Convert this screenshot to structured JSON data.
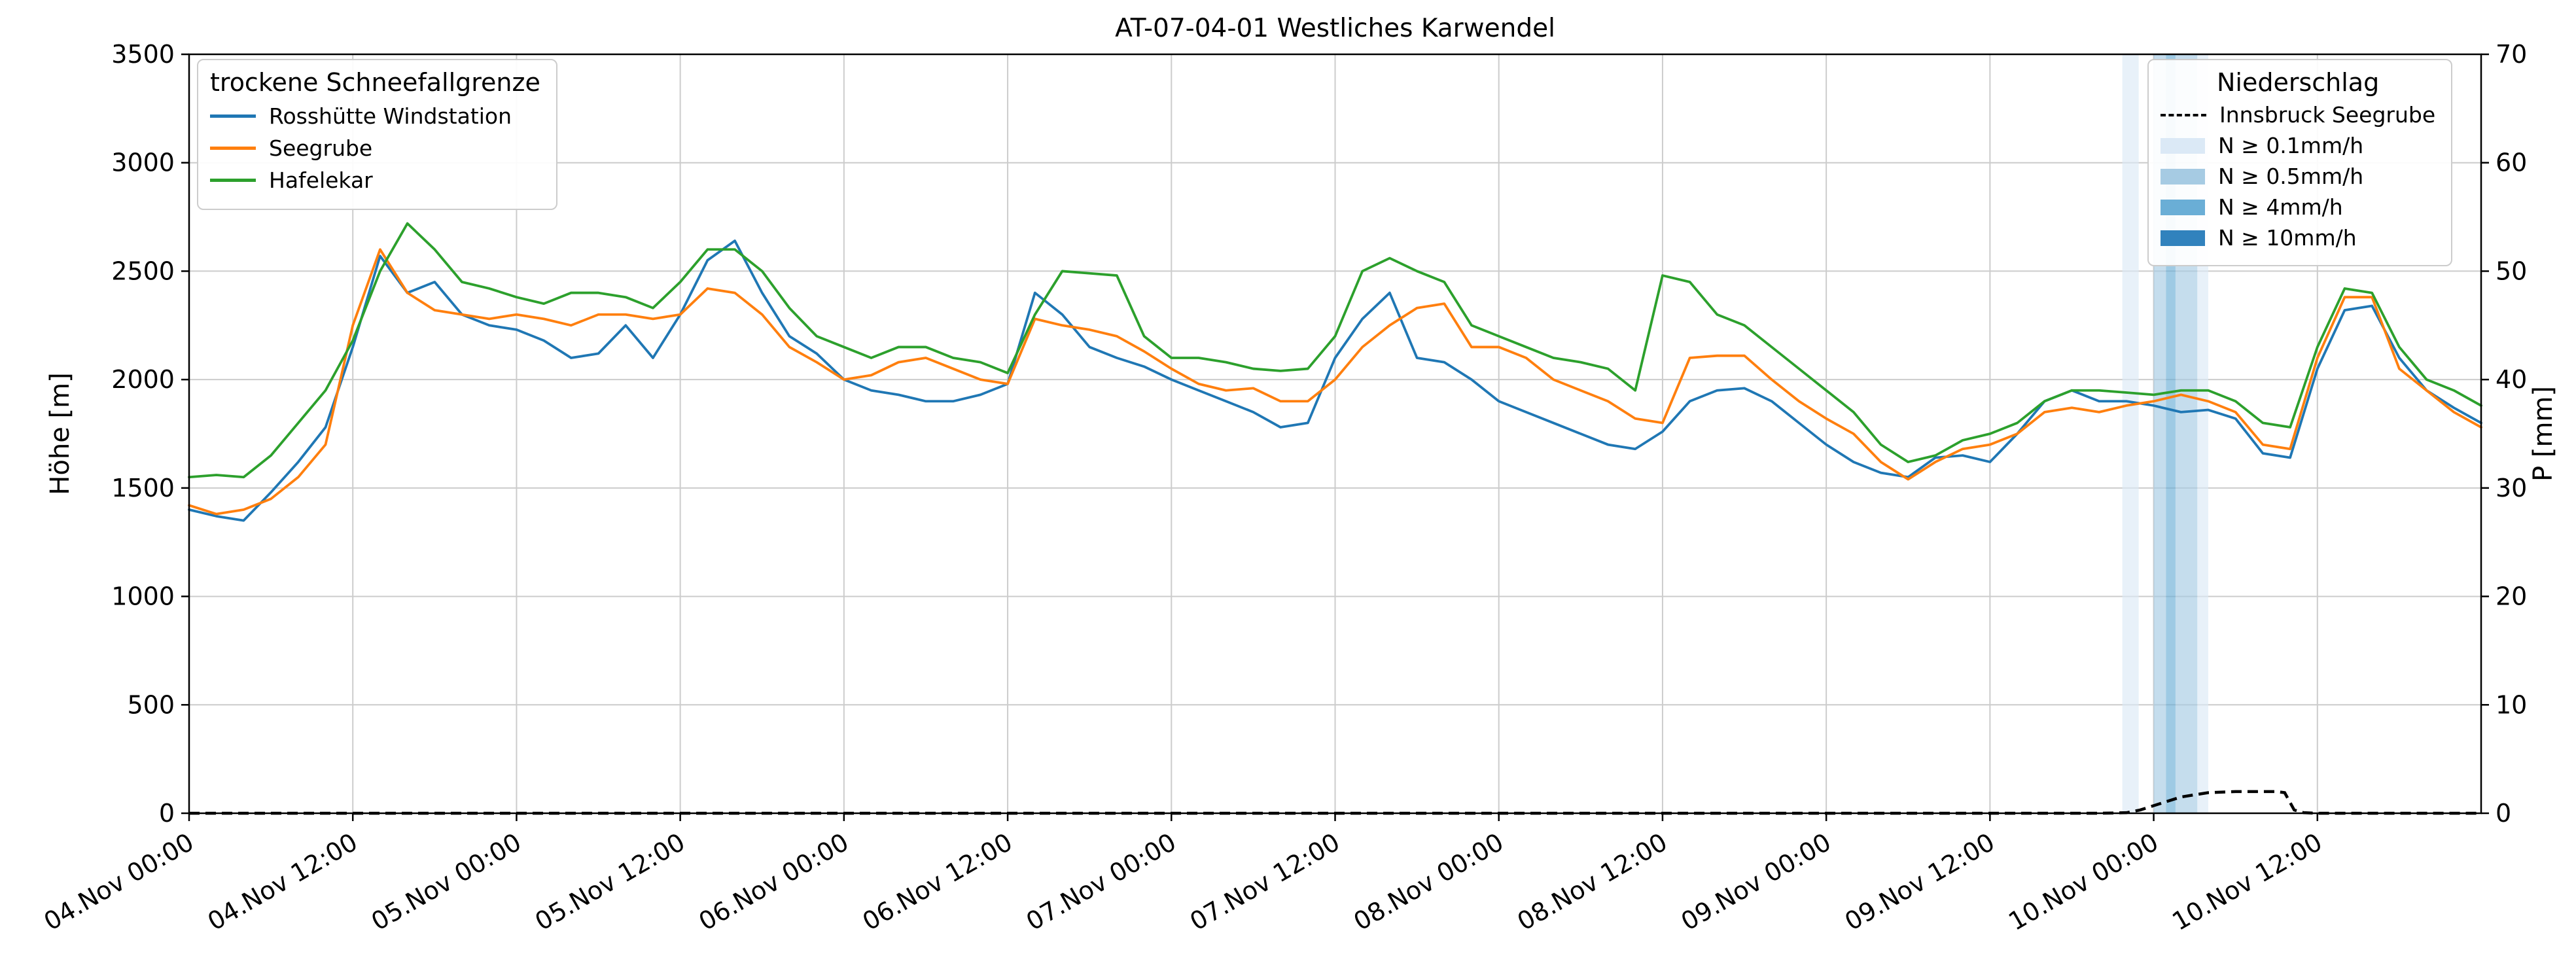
{
  "chart_data": {
    "type": "line",
    "title": "AT-07-04-01 Westliches Karwendel",
    "ylabel_left": "Höhe [m]",
    "ylabel_right": "P [mm]",
    "ylim_left": [
      0,
      3500
    ],
    "ylim_right": [
      0,
      70
    ],
    "y_ticks_left": [
      0,
      500,
      1000,
      1500,
      2000,
      2500,
      3000,
      3500
    ],
    "y_ticks_right": [
      0,
      10,
      20,
      30,
      40,
      50,
      60,
      70
    ],
    "x_hours_range": [
      0,
      168
    ],
    "x_tick_interval_hours": 12,
    "x_ticks": [
      "04.Nov 00:00",
      "04.Nov 12:00",
      "05.Nov 00:00",
      "05.Nov 12:00",
      "06.Nov 00:00",
      "06.Nov 12:00",
      "07.Nov 00:00",
      "07.Nov 12:00",
      "08.Nov 00:00",
      "08.Nov 12:00",
      "09.Nov 00:00",
      "09.Nov 12:00",
      "10.Nov 00:00",
      "10.Nov 12:00"
    ],
    "grid": true,
    "colors": {
      "grid": "#cccccc",
      "frame": "#000000",
      "background": "#ffffff"
    },
    "legend_snow": {
      "title": "trockene Schneefallgrenze"
    },
    "legend_precip": {
      "title": "Niederschlag"
    },
    "time_step": 2,
    "series": [
      {
        "id": "rosshuette-windstation",
        "name": "Rosshütte Windstation",
        "color": "#1f77b4",
        "values": [
          1400,
          1370,
          1350,
          1480,
          1620,
          1780,
          2150,
          2570,
          2400,
          2450,
          2300,
          2250,
          2230,
          2180,
          2100,
          2120,
          2250,
          2100,
          2300,
          2550,
          2640,
          2400,
          2200,
          2120,
          2000,
          1950,
          1930,
          1900,
          1900,
          1930,
          1980,
          2400,
          2300,
          2150,
          2100,
          2060,
          2000,
          1950,
          1900,
          1850,
          1780,
          1800,
          2100,
          2280,
          2400,
          2100,
          2080,
          2000,
          1900,
          1850,
          1800,
          1750,
          1700,
          1680,
          1760,
          1900,
          1950,
          1960,
          1900,
          1800,
          1700,
          1620,
          1570,
          1550,
          1640,
          1650,
          1620,
          1750,
          1900,
          1950,
          1900,
          1900,
          1880,
          1850,
          1860,
          1820,
          1660,
          1640,
          2050,
          2320,
          2340,
          2100,
          1950,
          1870,
          1800
        ]
      },
      {
        "id": "seegrube",
        "name": "Seegrube",
        "color": "#ff7f0e",
        "values": [
          1420,
          1380,
          1400,
          1450,
          1550,
          1700,
          2250,
          2600,
          2400,
          2320,
          2300,
          2280,
          2300,
          2280,
          2250,
          2300,
          2300,
          2280,
          2300,
          2420,
          2400,
          2300,
          2150,
          2080,
          2000,
          2020,
          2080,
          2100,
          2050,
          2000,
          1980,
          2280,
          2250,
          2230,
          2200,
          2130,
          2050,
          1980,
          1950,
          1960,
          1900,
          1900,
          2000,
          2150,
          2250,
          2330,
          2350,
          2150,
          2150,
          2100,
          2000,
          1950,
          1900,
          1820,
          1800,
          2100,
          2110,
          2110,
          2000,
          1900,
          1820,
          1750,
          1620,
          1540,
          1620,
          1680,
          1700,
          1750,
          1850,
          1870,
          1850,
          1880,
          1900,
          1930,
          1900,
          1850,
          1700,
          1680,
          2100,
          2380,
          2380,
          2050,
          1950,
          1850,
          1780
        ]
      },
      {
        "id": "hafelekar",
        "name": "Hafelekar",
        "color": "#2ca02c",
        "values": [
          1550,
          1560,
          1550,
          1650,
          1800,
          1950,
          2180,
          2500,
          2720,
          2600,
          2450,
          2420,
          2380,
          2350,
          2400,
          2400,
          2380,
          2330,
          2450,
          2600,
          2600,
          2500,
          2330,
          2200,
          2150,
          2100,
          2150,
          2150,
          2100,
          2080,
          2030,
          2300,
          2500,
          2490,
          2480,
          2200,
          2100,
          2100,
          2080,
          2050,
          2040,
          2050,
          2200,
          2500,
          2560,
          2500,
          2450,
          2250,
          2200,
          2150,
          2100,
          2080,
          2050,
          1950,
          2480,
          2450,
          2300,
          2250,
          2150,
          2050,
          1950,
          1850,
          1700,
          1620,
          1650,
          1720,
          1750,
          1800,
          1900,
          1950,
          1950,
          1940,
          1930,
          1950,
          1950,
          1900,
          1800,
          1780,
          2150,
          2420,
          2400,
          2150,
          2000,
          1950,
          1880
        ]
      }
    ],
    "precip": {
      "name": "Innsbruck Seegrube",
      "color": "#000000",
      "style": "dashed",
      "unit": "mm",
      "points": [
        [
          0,
          0
        ],
        [
          140,
          0
        ],
        [
          142,
          0.05
        ],
        [
          143,
          0.3
        ],
        [
          144,
          0.7
        ],
        [
          145,
          1.1
        ],
        [
          146,
          1.5
        ],
        [
          147,
          1.7
        ],
        [
          148,
          1.9
        ],
        [
          150,
          2.0
        ],
        [
          153,
          2.0
        ],
        [
          153.6,
          1.9
        ],
        [
          154.3,
          0.3
        ],
        [
          155,
          0.05
        ],
        [
          156,
          0
        ],
        [
          168,
          0
        ]
      ]
    },
    "precip_levels": [
      {
        "label": "N ≥ 0.1mm/h",
        "color": "#dbe9f6"
      },
      {
        "label": "N ≥ 0.5mm/h",
        "color": "#a6cbe3"
      },
      {
        "label": "N ≥ 4mm/h",
        "color": "#6aaed6"
      },
      {
        "label": "N ≥ 10mm/h",
        "color": "#3182bd"
      }
    ],
    "precip_bands": [
      {
        "start": 141.7,
        "end": 142.9,
        "level": 0
      },
      {
        "start": 144.0,
        "end": 144.9,
        "level": 1
      },
      {
        "start": 144.9,
        "end": 145.6,
        "level": 2
      },
      {
        "start": 145.6,
        "end": 147.2,
        "level": 1
      },
      {
        "start": 147.2,
        "end": 148.0,
        "level": 0
      }
    ]
  }
}
